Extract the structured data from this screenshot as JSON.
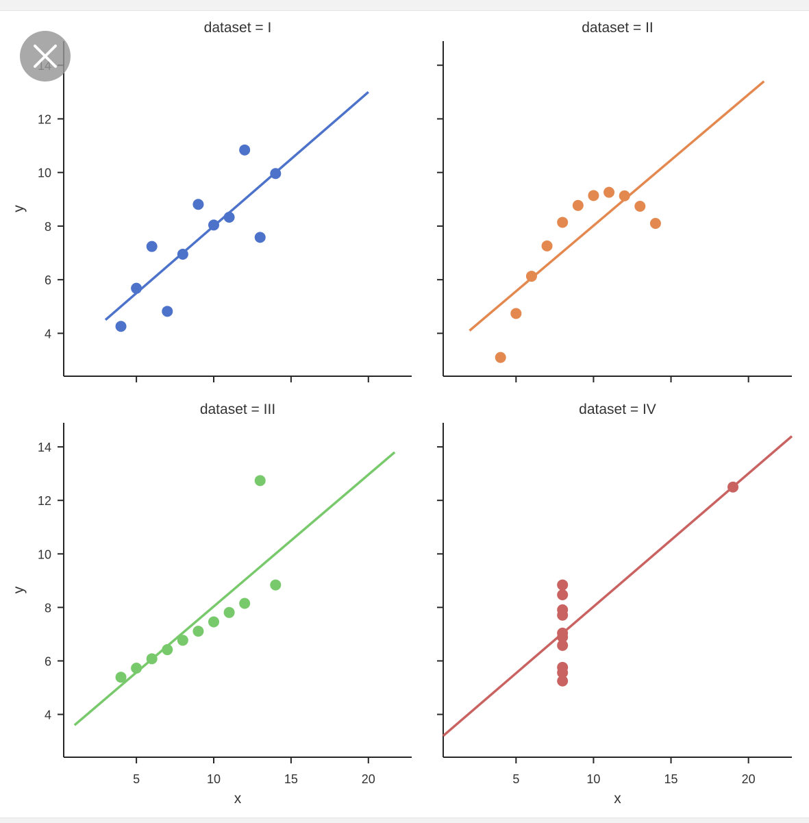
{
  "chart_data": {
    "type": "scatter",
    "shared_y_label": "y",
    "shared_x_label": "x",
    "x_ticks": [
      5,
      10,
      15,
      20
    ],
    "y_ticks": [
      4,
      6,
      8,
      10,
      12,
      14
    ],
    "panels": [
      {
        "title": "dataset = I",
        "color": "#4c72c9",
        "x": [
          10,
          8,
          13,
          9,
          11,
          14,
          6,
          4,
          12,
          7,
          5
        ],
        "y": [
          8.04,
          6.95,
          7.58,
          8.81,
          8.33,
          9.96,
          7.24,
          4.26,
          10.84,
          4.82,
          5.68
        ],
        "fit": {
          "x0": 3.0,
          "y0": 4.5,
          "x1": 20.0,
          "y1": 13.0
        },
        "xlim": [
          0.3,
          22.8
        ],
        "ylim": [
          2.4,
          14.9
        ],
        "show_x_ticklabels": false,
        "show_y_ticklabels": true,
        "show_xlabel": false,
        "show_ylabel": true
      },
      {
        "title": "dataset = II",
        "color": "#e3884f",
        "x": [
          10,
          8,
          13,
          9,
          11,
          14,
          6,
          4,
          12,
          7,
          5
        ],
        "y": [
          9.14,
          8.14,
          8.74,
          8.77,
          9.26,
          8.1,
          6.13,
          3.1,
          9.13,
          7.26,
          4.74
        ],
        "fit": {
          "x0": 2.0,
          "y0": 4.1,
          "x1": 21.0,
          "y1": 13.4
        },
        "xlim": [
          0.3,
          22.8
        ],
        "ylim": [
          2.4,
          14.9
        ],
        "show_x_ticklabels": false,
        "show_y_ticklabels": false,
        "show_xlabel": false,
        "show_ylabel": false
      },
      {
        "title": "dataset = III",
        "color": "#78c96b",
        "x": [
          10,
          8,
          13,
          9,
          11,
          14,
          6,
          4,
          12,
          7,
          5
        ],
        "y": [
          7.46,
          6.77,
          12.74,
          7.11,
          7.81,
          8.84,
          6.08,
          5.39,
          8.15,
          6.42,
          5.73
        ],
        "fit": {
          "x0": 1.0,
          "y0": 3.6,
          "x1": 21.7,
          "y1": 13.8
        },
        "xlim": [
          0.3,
          22.8
        ],
        "ylim": [
          2.4,
          14.9
        ],
        "show_x_ticklabels": true,
        "show_y_ticklabels": true,
        "show_xlabel": true,
        "show_ylabel": true
      },
      {
        "title": "dataset = IV",
        "color": "#c96361",
        "x": [
          8,
          8,
          8,
          8,
          8,
          8,
          8,
          19,
          8,
          8,
          8
        ],
        "y": [
          6.58,
          5.76,
          7.71,
          8.84,
          8.47,
          7.04,
          5.25,
          12.5,
          5.56,
          7.91,
          6.89
        ],
        "fit": {
          "x0": 0.3,
          "y0": 3.2,
          "x1": 22.8,
          "y1": 14.4
        },
        "xlim": [
          0.3,
          22.8
        ],
        "ylim": [
          2.4,
          14.9
        ],
        "show_x_ticklabels": true,
        "show_y_ticklabels": false,
        "show_xlabel": true,
        "show_ylabel": false
      }
    ]
  },
  "overlay": {
    "close_icon": "close-icon"
  }
}
